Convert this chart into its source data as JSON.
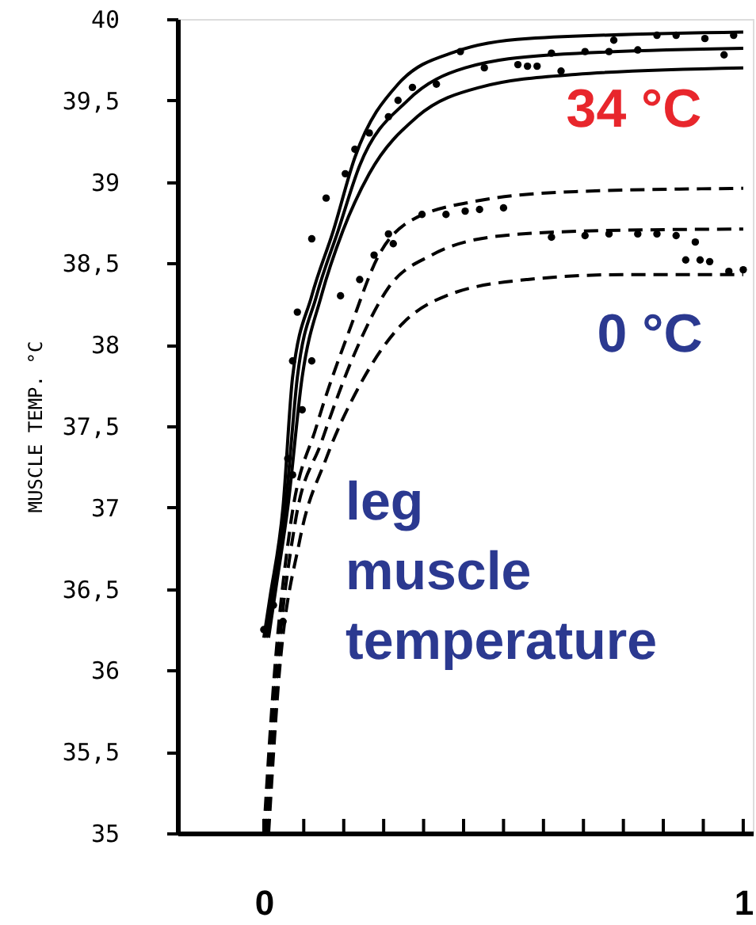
{
  "chart_data": {
    "type": "line",
    "ylabel": "MUSCLE TEMP. °C",
    "xlim": [
      -0.18,
      1.02
    ],
    "ylim": [
      35,
      40
    ],
    "xticks": [
      0,
      {
        "value": 0.0833,
        "label": null
      },
      {
        "value": 0.1667,
        "label": null
      },
      {
        "value": 0.25,
        "label": null
      },
      {
        "value": 0.3333,
        "label": null
      },
      {
        "value": 0.4167,
        "label": null
      },
      {
        "value": 0.5,
        "label": null
      },
      {
        "value": 0.5833,
        "label": null
      },
      {
        "value": 0.6667,
        "label": null
      },
      {
        "value": 0.75,
        "label": null
      },
      {
        "value": 0.8333,
        "label": null
      },
      {
        "value": 0.9167,
        "label": null
      },
      1
    ],
    "yticks": [
      35,
      {
        "value": 35.5,
        "label": "35,5"
      },
      36,
      {
        "value": 36.5,
        "label": "36,5"
      },
      37,
      {
        "value": 37.5,
        "label": "37,5"
      },
      38,
      {
        "value": 38.5,
        "label": "38,5"
      },
      39,
      {
        "value": 39.5,
        "label": "39,5"
      },
      40
    ],
    "grid": false,
    "series": [
      {
        "line_style": "solid",
        "color": "#000000",
        "x": [
          0.0,
          0.013,
          0.04,
          0.06,
          0.1,
          0.145,
          0.19,
          0.28,
          0.4,
          0.55,
          1.0
        ],
        "values": [
          36.2,
          36.45,
          37.0,
          37.8,
          38.3,
          38.7,
          39.15,
          39.6,
          39.8,
          39.88,
          39.92
        ]
      },
      {
        "line_style": "solid",
        "color": "#000000",
        "x": [
          0.005,
          0.02,
          0.045,
          0.07,
          0.11,
          0.155,
          0.2,
          0.3,
          0.42,
          0.6,
          1.0
        ],
        "values": [
          36.2,
          36.5,
          37.0,
          37.8,
          38.3,
          38.7,
          39.1,
          39.5,
          39.7,
          39.78,
          39.82
        ]
      },
      {
        "line_style": "solid",
        "color": "#000000",
        "x": [
          0.01,
          0.025,
          0.05,
          0.08,
          0.12,
          0.165,
          0.22,
          0.32,
          0.45,
          0.65,
          1.0
        ],
        "values": [
          36.2,
          36.5,
          37.0,
          37.8,
          38.3,
          38.7,
          39.05,
          39.4,
          39.58,
          39.66,
          39.7
        ]
      },
      {
        "line_style": "dashed",
        "color": "#000000",
        "x": [
          0.0,
          0.02,
          0.056,
          0.11,
          0.18,
          0.24,
          0.3,
          0.44,
          0.65,
          1.0
        ],
        "values": [
          35.0,
          35.9,
          36.9,
          37.5,
          38.1,
          38.55,
          38.75,
          38.88,
          38.94,
          38.96
        ]
      },
      {
        "line_style": "dashed",
        "color": "#000000",
        "x": [
          0.005,
          0.025,
          0.065,
          0.12,
          0.19,
          0.26,
          0.35,
          0.5,
          0.7,
          1.0
        ],
        "values": [
          35.0,
          35.9,
          36.9,
          37.4,
          37.95,
          38.35,
          38.55,
          38.67,
          38.7,
          38.71
        ]
      },
      {
        "line_style": "dashed",
        "color": "#000000",
        "x": [
          0.01,
          0.03,
          0.075,
          0.13,
          0.2,
          0.28,
          0.38,
          0.55,
          0.75,
          1.0
        ],
        "values": [
          35.0,
          35.9,
          36.8,
          37.3,
          37.75,
          38.1,
          38.3,
          38.4,
          38.43,
          38.43
        ]
      },
      {
        "type": "scatter",
        "marker": "circle",
        "color": "#000000",
        "x": [
          0.0,
          0.02,
          0.04,
          0.05,
          0.06,
          0.07,
          0.1,
          0.13,
          0.17,
          0.19,
          0.22,
          0.26,
          0.28,
          0.31,
          0.36,
          0.41,
          0.46,
          0.53,
          0.55,
          0.57,
          0.6,
          0.62,
          0.67,
          0.72,
          0.73,
          0.78,
          0.82,
          0.86,
          0.92,
          0.96,
          0.98,
          0.06,
          0.08,
          0.1,
          0.16,
          0.2,
          0.23,
          0.26,
          0.27,
          0.33,
          0.38,
          0.42,
          0.45,
          0.5,
          0.6,
          0.67,
          0.72,
          0.78,
          0.82,
          0.86,
          0.88,
          0.9,
          0.91,
          0.93,
          0.97,
          1.0
        ],
        "values": [
          36.25,
          36.4,
          36.3,
          37.3,
          37.9,
          38.2,
          38.65,
          38.9,
          39.05,
          39.2,
          39.3,
          39.4,
          39.5,
          39.58,
          39.6,
          39.8,
          39.7,
          39.72,
          39.71,
          39.71,
          39.79,
          39.68,
          39.8,
          39.8,
          39.87,
          39.81,
          39.9,
          39.9,
          39.88,
          39.78,
          39.9,
          37.2,
          37.6,
          37.9,
          38.3,
          38.4,
          38.55,
          38.68,
          38.62,
          38.8,
          38.8,
          38.82,
          38.83,
          38.84,
          38.66,
          38.67,
          38.68,
          38.68,
          38.68,
          38.67,
          38.52,
          38.63,
          38.52,
          38.51,
          38.45,
          38.46
        ]
      }
    ],
    "annotations": [
      "34 °C",
      "0 °C",
      "leg muscle temperature"
    ]
  }
}
